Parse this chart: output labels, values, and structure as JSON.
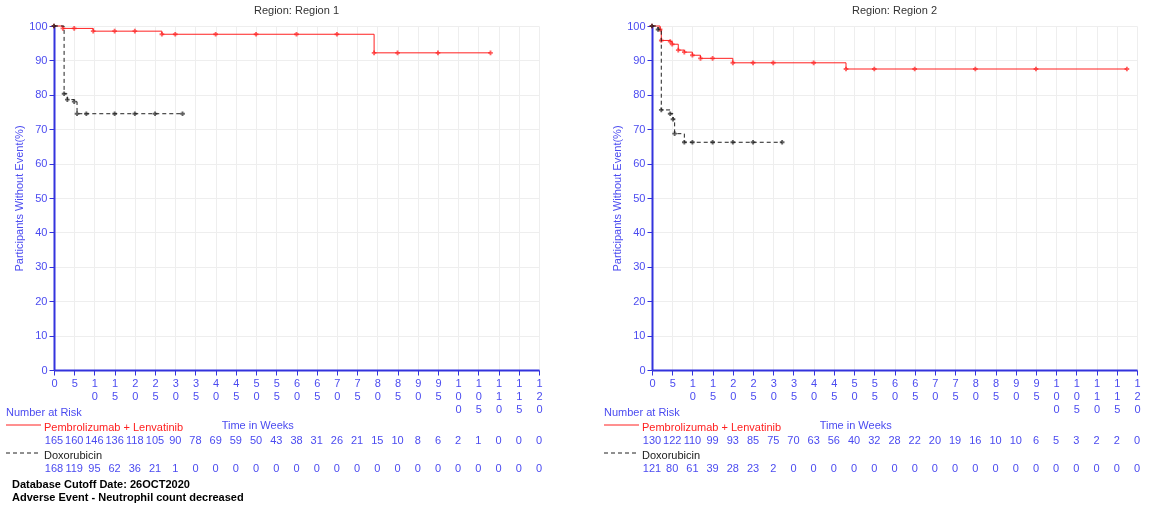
{
  "chart_data": [
    {
      "type": "step",
      "title": "Region: Region 1",
      "xlabel": "Time in Weeks",
      "ylabel": "Participants Without Event(%)",
      "xlim": [
        0,
        120
      ],
      "ylim": [
        0,
        100
      ],
      "xticks": [
        0,
        5,
        10,
        15,
        20,
        25,
        30,
        35,
        40,
        45,
        50,
        55,
        60,
        65,
        70,
        75,
        80,
        85,
        90,
        95,
        100,
        105,
        110,
        115,
        120
      ],
      "yticks": [
        0,
        10,
        20,
        30,
        40,
        50,
        60,
        70,
        80,
        90,
        100
      ],
      "grid": true,
      "legend": "bottom left",
      "marker": "cross",
      "series": [
        {
          "name": "Pembrolizumab + Lenvatinib",
          "color": "#ff2020",
          "line_style": "solid",
          "x": [
            0,
            2.2,
            5,
            9.7,
            15,
            20,
            26.7,
            30,
            40,
            50,
            60,
            70,
            79.2,
            85,
            95,
            108
          ],
          "values": [
            100,
            99.3,
            99.3,
            98.5,
            98.5,
            98.5,
            97.6,
            97.6,
            97.6,
            97.6,
            97.6,
            97.6,
            92.2,
            92.2,
            92.2,
            92.2
          ]
        },
        {
          "name": "Doxorubicin",
          "color": "#202020",
          "line_style": "dashed",
          "x": [
            0,
            2.5,
            3.3,
            5,
            5.7,
            8,
            15,
            20,
            25,
            31.8
          ],
          "values": [
            100,
            80.3,
            78.6,
            78,
            74.5,
            74.5,
            74.5,
            74.5,
            74.5,
            74.5
          ]
        }
      ],
      "annotations": [
        "Number at Risk",
        "165 160 146 136 118 105 90 78 69 59 50 43 38 31 26 21 15 10 8 6 2 1 0 0 0",
        "168 119 95 62 36 21 1 0 0 0 0 0 0 0 0 0 0 0 0 0 0 0 0 0 0",
        "Database Cutoff Date: 26OCT2020",
        "Adverse Event - Neutrophil count decreased"
      ]
    },
    {
      "type": "step",
      "title": "Region: Region 2",
      "xlabel": "Time in Weeks",
      "ylabel": "Participants Without Event(%)",
      "xlim": [
        0,
        120
      ],
      "ylim": [
        0,
        100
      ],
      "xticks": [
        0,
        5,
        10,
        15,
        20,
        25,
        30,
        35,
        40,
        45,
        50,
        55,
        60,
        65,
        70,
        75,
        80,
        85,
        90,
        95,
        100,
        105,
        110,
        115,
        120
      ],
      "yticks": [
        0,
        10,
        20,
        30,
        40,
        50,
        60,
        70,
        80,
        90,
        100
      ],
      "grid": true,
      "legend": "bottom left",
      "marker": "cross",
      "series": [
        {
          "name": "Pembrolizumab + Lenvatinib",
          "color": "#ff2020",
          "line_style": "solid",
          "x": [
            0,
            2,
            2.3,
            4.5,
            5,
            6.5,
            8,
            10,
            12,
            15,
            20,
            25,
            30,
            40,
            48,
            55,
            65,
            80,
            95,
            117.5
          ],
          "values": [
            100,
            99,
            95.8,
            95.5,
            94.7,
            93,
            92.4,
            91.5,
            90.6,
            90.6,
            89.3,
            89.3,
            89.3,
            89.3,
            87.5,
            87.5,
            87.5,
            87.5,
            87.5,
            87.5
          ]
        },
        {
          "name": "Doxorubicin",
          "color": "#202020",
          "line_style": "dashed",
          "x": [
            0,
            1.5,
            2.3,
            4.5,
            5.2,
            5.6,
            8,
            10,
            15,
            20,
            25,
            32.2
          ],
          "values": [
            100,
            99,
            75.6,
            74.5,
            72.9,
            68.7,
            66.2,
            66.2,
            66.2,
            66.2,
            66.2,
            66.2
          ]
        }
      ],
      "annotations": [
        "Number at Risk",
        "130 122 110 99 93 85 75 70 63 56 40 32 28 22 20 19 16 10 10 6 5 3 2 2 0",
        "121 80 61 39 28 23 2 0 0 0 0 0 0 0 0 0 0 0 0 0 0 0 0 0 0"
      ]
    }
  ]
}
